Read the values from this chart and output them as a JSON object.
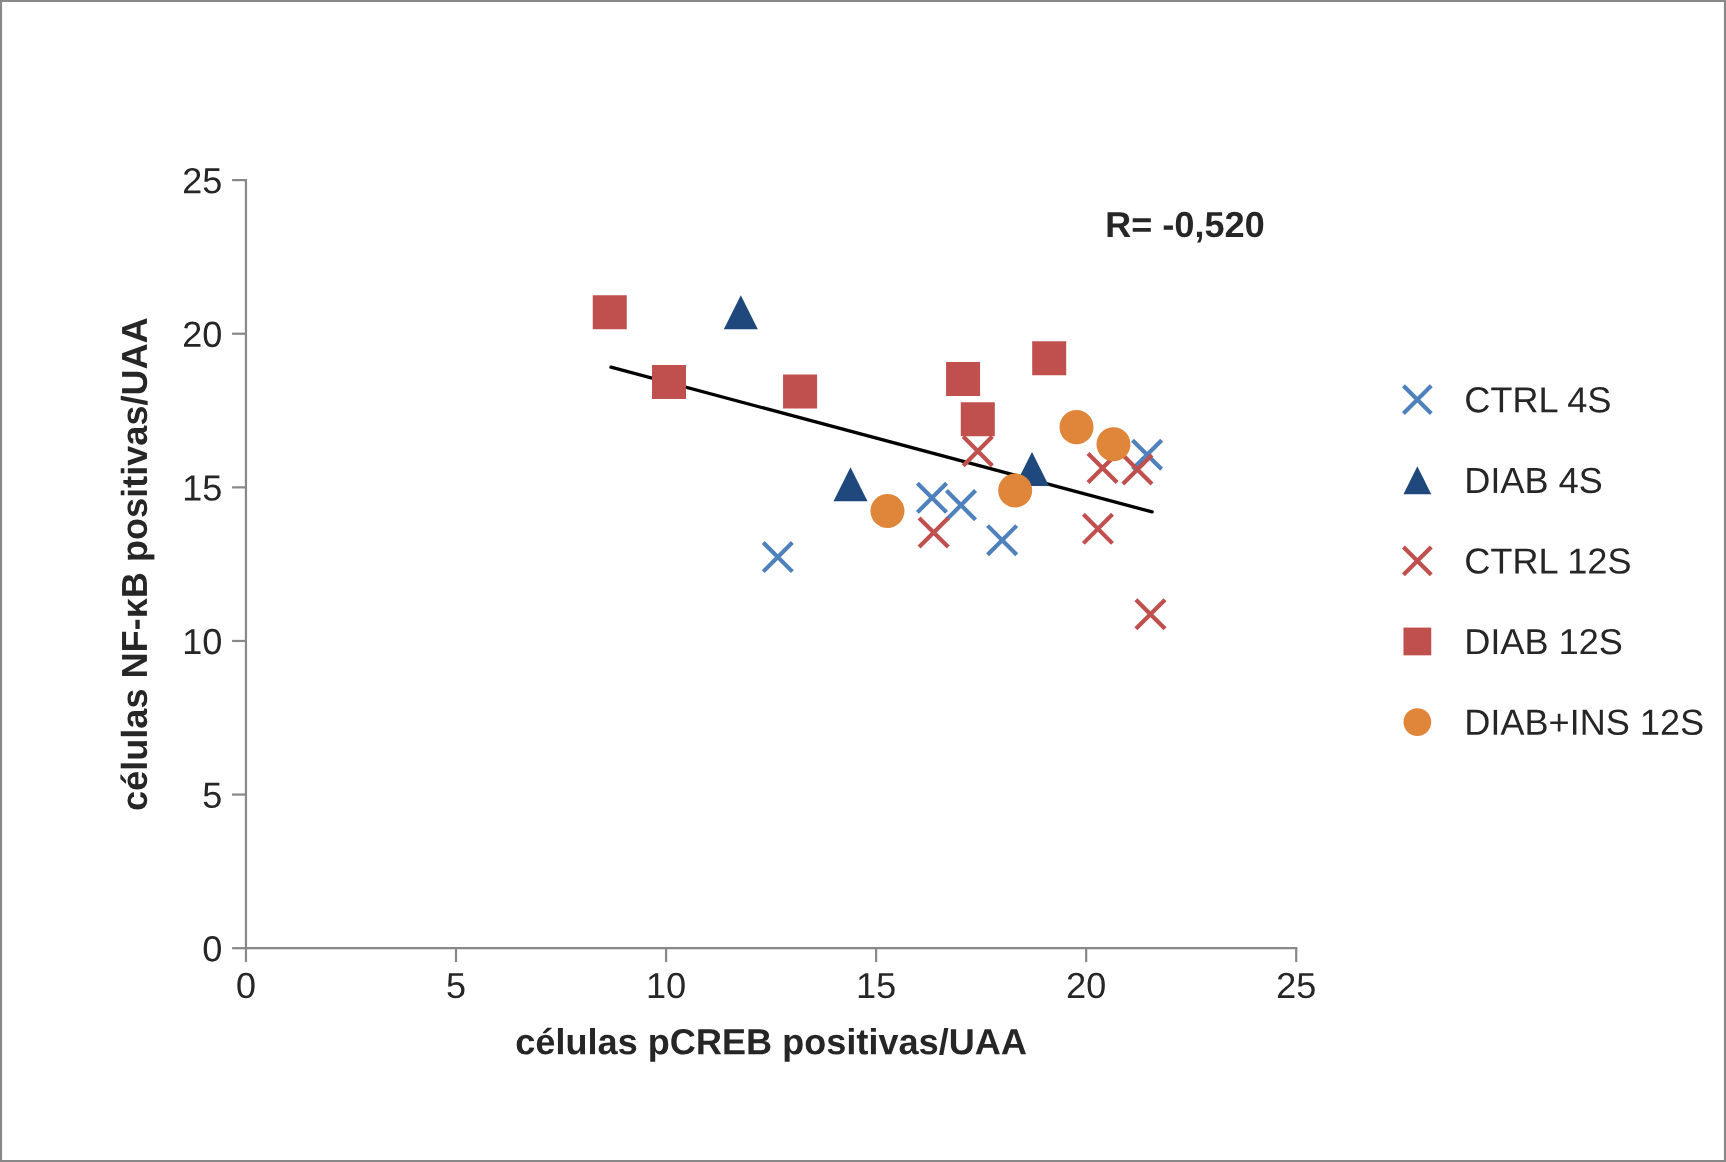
{
  "chart_data": {
    "type": "scatter",
    "xlabel": "células pCREB positivas/UAA",
    "ylabel": "células NF-κB positivas/UAA",
    "xlim": [
      0,
      25
    ],
    "xticks": [
      0,
      5,
      10,
      15,
      20,
      25
    ],
    "ylim": [
      0,
      25
    ],
    "yticks": [
      0,
      5,
      10,
      15,
      20,
      25
    ],
    "grid": false,
    "legend": "right",
    "annotations": [
      "R= -0,520"
    ],
    "series": [
      {
        "name": "CTRL 4S",
        "color": "#4f81bd",
        "marker": "cross",
        "x": [
          12.66,
          16.33,
          17.02,
          18.0,
          21.45
        ],
        "values": [
          12.73,
          14.66,
          14.42,
          13.28,
          16.06
        ]
      },
      {
        "name": "DIAB 4S",
        "color": "#1f497d",
        "marker": "triangle",
        "x": [
          11.78,
          14.39,
          18.71
        ],
        "values": [
          20.7,
          15.1,
          15.6
        ]
      },
      {
        "name": "CTRL 12S",
        "color": "#c0504d",
        "marker": "cross",
        "x": [
          16.37,
          17.42,
          20.28,
          20.39,
          21.22,
          21.53
        ],
        "values": [
          13.53,
          16.18,
          13.65,
          15.63,
          15.58,
          10.87
        ]
      },
      {
        "name": "DIAB 12S",
        "color": "#c0504d",
        "marker": "square",
        "x": [
          8.66,
          10.07,
          13.19,
          17.07,
          17.42,
          19.12
        ],
        "values": [
          20.7,
          18.43,
          18.12,
          18.53,
          17.22,
          19.2
        ]
      },
      {
        "name": "DIAB+INS 12S",
        "color": "#e0863a",
        "marker": "circle",
        "x": [
          15.27,
          18.31,
          19.77,
          20.65
        ],
        "values": [
          14.23,
          14.9,
          16.96,
          16.4
        ]
      },
      {
        "type": "line",
        "color": "#000000",
        "line_style": "solid",
        "marker": "none",
        "x": [
          8.69,
          21.57
        ],
        "values": [
          18.91,
          14.2
        ]
      }
    ]
  }
}
